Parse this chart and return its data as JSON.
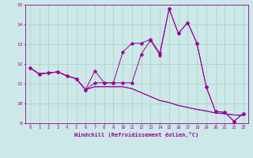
{
  "title": "",
  "xlabel": "Windchill (Refroidissement éolien,°C)",
  "ylabel": "",
  "background_color": "#cde8e8",
  "grid_color": "#aad4cc",
  "line_color": "#990099",
  "xlim": [
    -0.5,
    23.5
  ],
  "ylim": [
    9,
    15
  ],
  "yticks": [
    9,
    10,
    11,
    12,
    13,
    14,
    15
  ],
  "xticks": [
    0,
    1,
    2,
    3,
    4,
    5,
    6,
    7,
    8,
    9,
    10,
    11,
    12,
    13,
    14,
    15,
    16,
    17,
    18,
    19,
    20,
    21,
    22,
    23
  ],
  "series_lines": [
    [
      11.8,
      11.5,
      11.55,
      11.6,
      11.4,
      11.25,
      10.7,
      10.85,
      10.85,
      10.85,
      10.85,
      10.75,
      10.55,
      10.35,
      10.15,
      10.05,
      9.9,
      9.8,
      9.7,
      9.62,
      9.52,
      9.48,
      9.42,
      9.4
    ],
    [
      11.8,
      11.5,
      11.55,
      11.6,
      11.4,
      11.25,
      10.7,
      10.85,
      10.85,
      10.85,
      10.85,
      10.75,
      10.55,
      10.35,
      10.15,
      10.05,
      9.9,
      9.8,
      9.7,
      9.62,
      9.52,
      9.48,
      9.42,
      9.4
    ]
  ],
  "series_markers": [
    [
      11.8,
      11.5,
      11.55,
      11.6,
      11.4,
      11.25,
      10.7,
      11.65,
      11.05,
      11.05,
      12.6,
      13.05,
      13.05,
      13.25,
      12.55,
      14.8,
      13.55,
      14.1,
      13.05,
      10.85,
      9.6,
      9.55,
      9.1,
      9.5
    ],
    [
      11.8,
      11.5,
      11.55,
      11.6,
      11.4,
      11.25,
      10.7,
      11.05,
      11.05,
      11.05,
      11.05,
      11.05,
      12.5,
      13.2,
      12.45,
      14.8,
      13.55,
      14.1,
      13.05,
      10.85,
      9.6,
      9.55,
      9.1,
      9.5
    ]
  ]
}
